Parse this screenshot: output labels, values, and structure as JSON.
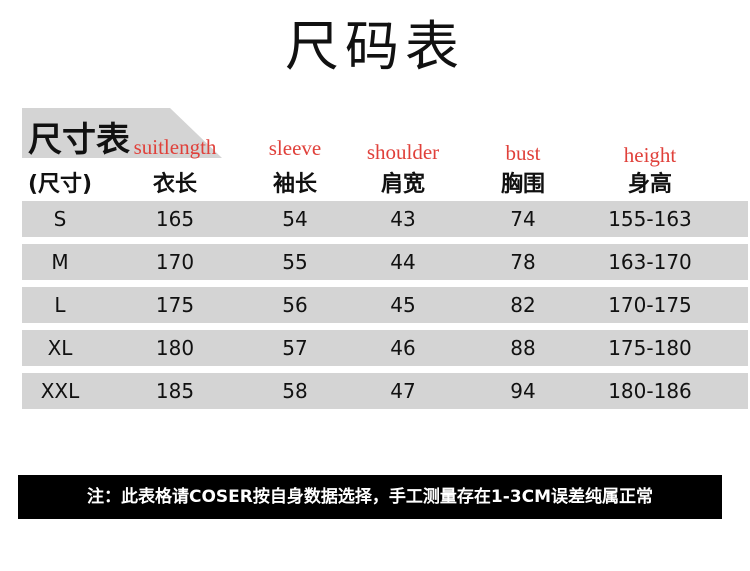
{
  "title": "尺码表",
  "table_label": "尺寸表",
  "columns": [
    {
      "en": "",
      "cn": "(尺寸)"
    },
    {
      "en": "suitlength",
      "cn": "衣长"
    },
    {
      "en": "sleeve",
      "cn": "袖长"
    },
    {
      "en": "shoulder",
      "cn": "肩宽"
    },
    {
      "en": "bust",
      "cn": "胸围"
    },
    {
      "en": "height",
      "cn": "身高"
    }
  ],
  "rows": [
    [
      "S",
      "165",
      "54",
      "43",
      "74",
      "155-163"
    ],
    [
      "M",
      "170",
      "55",
      "44",
      "78",
      "163-170"
    ],
    [
      "L",
      "175",
      "56",
      "45",
      "82",
      "170-175"
    ],
    [
      "XL",
      "180",
      "57",
      "46",
      "88",
      "175-180"
    ],
    [
      "XXL",
      "185",
      "58",
      "47",
      "94",
      "180-186"
    ]
  ],
  "note": "注：此表格请COSER按自身数据选择，手工测量存在1-3CM误差纯属正常",
  "colors": {
    "row_bg": "#d4d4d4",
    "english_label": "#e0403a",
    "note_bg": "#000000"
  }
}
